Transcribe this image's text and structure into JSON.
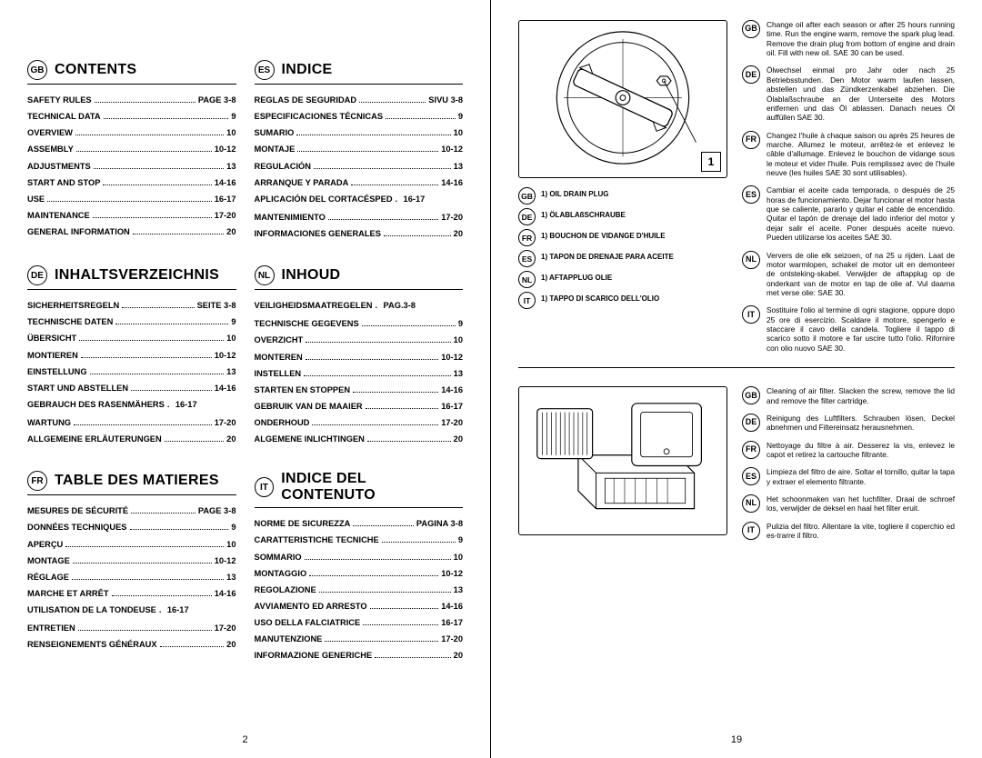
{
  "left": {
    "pagenum": "2",
    "blocks": [
      {
        "lang": "GB",
        "title": "CONTENTS",
        "items": [
          {
            "label": "SAFETY RULES",
            "pg": "PAGE 3-8"
          },
          {
            "label": "TECHNICAL DATA",
            "pg": "9"
          },
          {
            "label": "OVERVIEW",
            "pg": "10"
          },
          {
            "label": "ASSEMBLY",
            "pg": "10-12"
          },
          {
            "label": "ADJUSTMENTS",
            "pg": "13"
          },
          {
            "label": "START AND STOP",
            "pg": "14-16"
          },
          {
            "label": "USE",
            "pg": "16-17"
          },
          {
            "label": "MAINTENANCE",
            "pg": "17-20"
          },
          {
            "label": "GENERAL INFORMATION",
            "pg": "20"
          }
        ]
      },
      {
        "lang": "ES",
        "title": "INDICE",
        "items": [
          {
            "label": "REGLAS DE SEGURIDAD",
            "pg": "SIVU 3-8"
          },
          {
            "label": "ESPECIFICACIONES TÉCNICAS",
            "pg": "9"
          },
          {
            "label": "SUMARIO",
            "pg": "10"
          },
          {
            "label": "MONTAJE",
            "pg": "10-12"
          },
          {
            "label": "REGULACIÓN",
            "pg": "13"
          },
          {
            "label": "ARRANQUE Y PARADA",
            "pg": "14-16"
          },
          {
            "label": "APLICACIÓN DEL CORTACÉSPED",
            "pg": "16-17",
            "nodash": true
          },
          {
            "label": "MANTENIMIENTO",
            "pg": "17-20"
          },
          {
            "label": "INFORMACIONES GENERALES",
            "pg": "20"
          }
        ]
      },
      {
        "lang": "DE",
        "title": "INHALTSVERZEICHNIS",
        "items": [
          {
            "label": "SICHERHEITSREGELN",
            "pg": "SEITE 3-8"
          },
          {
            "label": "TECHNISCHE DATEN",
            "pg": "9"
          },
          {
            "label": "ÜBERSICHT",
            "pg": "10"
          },
          {
            "label": "MONTIEREN",
            "pg": "10-12"
          },
          {
            "label": "EINSTELLUNG",
            "pg": "13"
          },
          {
            "label": "START UND ABSTELLEN",
            "pg": "14-16"
          },
          {
            "label": "GEBRAUCH DES RASENMÄHERS",
            "pg": "16-17",
            "nodash": true
          },
          {
            "label": "WARTUNG",
            "pg": "17-20"
          },
          {
            "label": "ALLGEMEINE ERLÄUTERUNGEN",
            "pg": "20"
          }
        ]
      },
      {
        "lang": "NL",
        "title": "INHOUD",
        "items": [
          {
            "label": "VEILIGHEIDSMAATREGELEN",
            "pg": "PAG.3-8",
            "nodash": true
          },
          {
            "label": "TECHNISCHE GEGEVENS",
            "pg": "9"
          },
          {
            "label": "OVERZICHT",
            "pg": "10"
          },
          {
            "label": "MONTEREN",
            "pg": "10-12"
          },
          {
            "label": "INSTELLEN",
            "pg": "13"
          },
          {
            "label": "STARTEN EN STOPPEN",
            "pg": "14-16"
          },
          {
            "label": "GEBRUIK VAN DE MAAIER",
            "pg": "16-17"
          },
          {
            "label": "ONDERHOUD",
            "pg": "17-20"
          },
          {
            "label": "ALGEMENE INLICHTINGEN",
            "pg": "20"
          }
        ]
      },
      {
        "lang": "FR",
        "title": "TABLE DES MATIERES",
        "items": [
          {
            "label": "MESURES DE SÉCURITÉ",
            "pg": "PAGE 3-8"
          },
          {
            "label": "DONNÉES TECHNIQUES",
            "pg": "9"
          },
          {
            "label": "APERÇU",
            "pg": "10"
          },
          {
            "label": "MONTAGE",
            "pg": "10-12"
          },
          {
            "label": "RÉGLAGE",
            "pg": "13"
          },
          {
            "label": "MARCHE ET ARRÊT",
            "pg": "14-16"
          },
          {
            "label": "UTILISATION DE LA TONDEUSE",
            "pg": "16-17",
            "nodash": true
          },
          {
            "label": "ENTRETIEN",
            "pg": "17-20"
          },
          {
            "label": "RENSEIGNEMENTS GÉNÉRAUX",
            "pg": "20"
          }
        ]
      },
      {
        "lang": "IT",
        "title": "INDICE DEL CONTENUTO",
        "items": [
          {
            "label": "NORME DE SICUREZZA",
            "pg": "PAGINA 3-8"
          },
          {
            "label": "CARATTERISTICHE TECNICHE",
            "pg": "9"
          },
          {
            "label": "SOMMARIO",
            "pg": "10"
          },
          {
            "label": "MONTAGGIO",
            "pg": "10-12"
          },
          {
            "label": "REGOLAZIONE",
            "pg": "13"
          },
          {
            "label": "AVVIAMENTO ED ARRESTO",
            "pg": "14-16"
          },
          {
            "label": "USO DELLA FALCIATRICE",
            "pg": "16-17"
          },
          {
            "label": "MANUTENZIONE",
            "pg": "17-20"
          },
          {
            "label": "INFORMAZIONE GENERICHE",
            "pg": "20"
          }
        ]
      }
    ]
  },
  "right": {
    "pagenum": "19",
    "sec1": {
      "callout_num": "1",
      "callouts": [
        {
          "lang": "GB",
          "txt": "1)  OIL DRAIN PLUG"
        },
        {
          "lang": "DE",
          "txt": "1)  ÖLABLAßSCHRAUBE"
        },
        {
          "lang": "FR",
          "txt": "1)  BOUCHON DE VIDANGE D'HUILE"
        },
        {
          "lang": "ES",
          "txt": "1)  TAPON DE DRENAJE PARA ACEITE"
        },
        {
          "lang": "NL",
          "txt": "1)  AFTAPPLUG OLIE"
        },
        {
          "lang": "IT",
          "txt": "1)  TAPPO DI SCARICO DELL'OLIO"
        }
      ],
      "paras": [
        {
          "lang": "GB",
          "txt": "Change oil after each season or after 25 hours running time. Run the engine warm, remove the spark plug lead. Remove the drain plug from bottom of engine and drain oil. Fill with new oil. SAE 30 can be used."
        },
        {
          "lang": "DE",
          "txt": "Ölwechsel einmal pro Jahr oder nach 25 Betriebsstunden. Den Motor warm laufen lassen, abstellen und das Zündkerzenkabel abziehen. Die Ölablaßschraube an der Unterseite des Motors entfernen und das Öl ablassen. Danach neues Öl auffüllen SAE 30."
        },
        {
          "lang": "FR",
          "txt": "Changez l'huile à chaque saison ou après 25 heures de marche. Allumez le moteur, arrêtez-le et enlevez le câble d'allumage. Enlevez le bouchon de vidange sous le moteur et vider l'huile. Puis remplissez avec de l'huile neuve (les huiles SAE 30 sont utilisables)."
        },
        {
          "lang": "ES",
          "txt": "Cambiar el aceite cada temporada, o después de 25 horas de funcionamiento. Dejar funcionar el motor hasta que se caliente, pararlo y quitar el cable de encendido. Quitar el tapón de drenaje del lado inferior del motor y dejar salir el aceite. Poner después aceite nuevo. Pueden utilizarse los aceites SAE 30."
        },
        {
          "lang": "NL",
          "txt": "Ververs de olie elk seizoen, of na 25 u rijden. Laat de motor warmlopen, schakel de motor uit en demonteer de ontsteking-skabel. Verwijder de aftapplug op de onderkant van de motor en tap de olie af. Vul daarna met verse olie: SAE 30."
        },
        {
          "lang": "IT",
          "txt": "Sostituire l'olio al termine di ogni stagione, oppure dopo 25 ore di esercizio. Scaldare il motore, spengerlo e staccare il cavo della candela. Togliere il tappo di scarico sotto il motore e far uscire tutto l'olio. Rifornire con olio nuovo SAE 30."
        }
      ]
    },
    "sec2": {
      "paras": [
        {
          "lang": "GB",
          "txt": "Cleaning of air filter. Slacken the screw, remove the lid and remove the filter cartridge."
        },
        {
          "lang": "DE",
          "txt": "Reinigung des Luftfilters. Schrauben lösen, Deckel abnehmen und Filtereinsatz herausnehmen."
        },
        {
          "lang": "FR",
          "txt": "Nettoyage du filtre à air. Desserez la vis, enlevez le capot et retirez la cartouche filtrante."
        },
        {
          "lang": "ES",
          "txt": "Limpieza del filtro de aire. Soltar el tornillo, quitar la tapa y extraer el elemento filtrante."
        },
        {
          "lang": "NL",
          "txt": "Het schoonmaken van het luchfilter. Draai de schroef los, verwijder de deksel en haal het filter eruit."
        },
        {
          "lang": "IT",
          "txt": "Pulizia del filtro. Allentare la vite, togliere il coperchio ed es-trarre il filtro."
        }
      ]
    }
  }
}
